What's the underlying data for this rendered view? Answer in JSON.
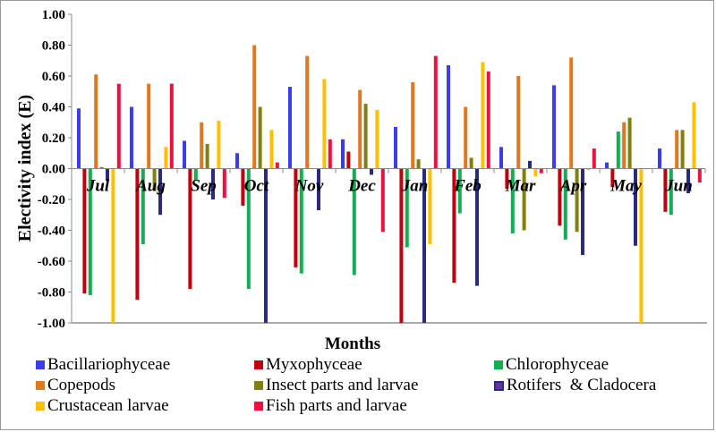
{
  "chart_data": {
    "type": "bar",
    "title": "",
    "xlabel": "Months",
    "ylabel": "Electivity index (E)",
    "ylim": [
      -1.0,
      1.0
    ],
    "yticks": [
      "1.00",
      "0.80",
      "0.60",
      "0.40",
      "0.20",
      "0.00",
      "-0.20",
      "-0.40",
      "-0.60",
      "-0.80",
      "-1.00"
    ],
    "grid": false,
    "legend_position": "bottom",
    "categories": [
      "Jul",
      "Aug",
      "Sep",
      "Oct",
      "Nov",
      "Dec",
      "Jan",
      "Feb",
      "Mar",
      "Apr",
      "May",
      "Jun"
    ],
    "series": [
      {
        "name": "Bacillariophyceae",
        "color": "#3b3bf0",
        "values": [
          0.39,
          0.4,
          0.18,
          0.1,
          0.53,
          0.19,
          0.27,
          0.67,
          0.14,
          0.54,
          0.04,
          0.13
        ]
      },
      {
        "name": "Myxophyceae",
        "color": "#c00010",
        "values": [
          -0.81,
          -0.85,
          -0.78,
          -0.24,
          -0.64,
          0.11,
          -1.0,
          -0.74,
          -0.13,
          -0.37,
          -0.12,
          -0.28
        ]
      },
      {
        "name": "Chlorophyceae",
        "color": "#10b050",
        "values": [
          -0.82,
          -0.49,
          -0.08,
          -0.78,
          -0.68,
          -0.69,
          -0.51,
          -0.29,
          -0.42,
          -0.46,
          0.24,
          -0.3
        ]
      },
      {
        "name": "Copepods",
        "color": "#e07820",
        "values": [
          0.61,
          0.55,
          0.3,
          0.8,
          0.73,
          0.51,
          0.56,
          0.4,
          0.6,
          0.72,
          0.3,
          0.25
        ]
      },
      {
        "name": "Insect parts and larvae",
        "color": "#808010",
        "values": [
          0.01,
          -0.14,
          0.16,
          0.4,
          0.0,
          0.42,
          0.06,
          0.07,
          -0.4,
          -0.41,
          0.33,
          0.25
        ]
      },
      {
        "name": "Rotifers  & Cladocera",
        "color": "#2a2a80",
        "values": [
          -0.08,
          -0.3,
          -0.2,
          -1.0,
          -0.27,
          -0.04,
          -1.0,
          -0.76,
          0.05,
          -0.56,
          -0.5,
          -0.16
        ]
      },
      {
        "name": "Crustacean larvae",
        "color": "#ffc000",
        "values": [
          -1.0,
          0.14,
          0.31,
          0.25,
          0.58,
          0.38,
          -0.49,
          0.69,
          -0.05,
          -0.01,
          -1.0,
          0.43
        ]
      },
      {
        "name": "Fish parts and larvae",
        "color": "#f01040",
        "values": [
          0.55,
          0.55,
          -0.19,
          0.04,
          0.19,
          -0.41,
          0.73,
          0.63,
          -0.03,
          0.13,
          0.0,
          -0.09
        ]
      }
    ]
  }
}
